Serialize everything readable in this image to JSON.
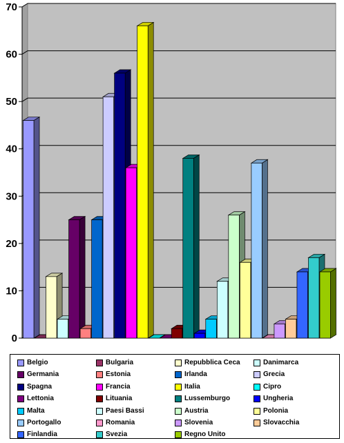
{
  "chart_data": {
    "type": "bar",
    "title": "",
    "xlabel": "",
    "ylabel": "",
    "ylim": [
      0,
      70
    ],
    "yticks": [
      0,
      10,
      20,
      30,
      40,
      50,
      60,
      70
    ],
    "grid": true,
    "legend_placement": "bottom",
    "style": "3d-columns",
    "series": [
      {
        "name": "Belgio",
        "value": 46,
        "color": "#9999ff"
      },
      {
        "name": "Bulgaria",
        "value": 0,
        "color": "#993366"
      },
      {
        "name": "Repubblica Ceca",
        "value": 13,
        "color": "#ffffcc"
      },
      {
        "name": "Danimarca",
        "value": 4,
        "color": "#ccffff"
      },
      {
        "name": "Germania",
        "value": 25,
        "color": "#660066"
      },
      {
        "name": "Estonia",
        "value": 2,
        "color": "#ff8080"
      },
      {
        "name": "Irlanda",
        "value": 25,
        "color": "#0066cc"
      },
      {
        "name": "Grecia",
        "value": 51,
        "color": "#ccccff"
      },
      {
        "name": "Spagna",
        "value": 56,
        "color": "#000080"
      },
      {
        "name": "Francia",
        "value": 36,
        "color": "#ff00ff"
      },
      {
        "name": "Italia",
        "value": 66,
        "color": "#ffff00"
      },
      {
        "name": "Cipro",
        "value": 0,
        "color": "#00ffff"
      },
      {
        "name": "Lettonia",
        "value": 0,
        "color": "#800080"
      },
      {
        "name": "Lituania",
        "value": 2,
        "color": "#800000"
      },
      {
        "name": "Lussemburgo",
        "value": 38,
        "color": "#008080"
      },
      {
        "name": "Ungheria",
        "value": 1,
        "color": "#0000ff"
      },
      {
        "name": "Malta",
        "value": 4,
        "color": "#00ccff"
      },
      {
        "name": "Paesi Bassi",
        "value": 12,
        "color": "#ccffff"
      },
      {
        "name": "Austria",
        "value": 26,
        "color": "#ccffcc"
      },
      {
        "name": "Polonia",
        "value": 16,
        "color": "#ffff99"
      },
      {
        "name": "Portogallo",
        "value": 37,
        "color": "#99ccff"
      },
      {
        "name": "Romania",
        "value": 0,
        "color": "#ff99cc"
      },
      {
        "name": "Slovenia",
        "value": 3,
        "color": "#cc99ff"
      },
      {
        "name": "Slovacchia",
        "value": 4,
        "color": "#ffcc99"
      },
      {
        "name": "Finlandia",
        "value": 14,
        "color": "#3366ff"
      },
      {
        "name": "Svezia",
        "value": 17,
        "color": "#33cccc"
      },
      {
        "name": "Regno Unito",
        "value": 14,
        "color": "#99cc00"
      }
    ]
  }
}
